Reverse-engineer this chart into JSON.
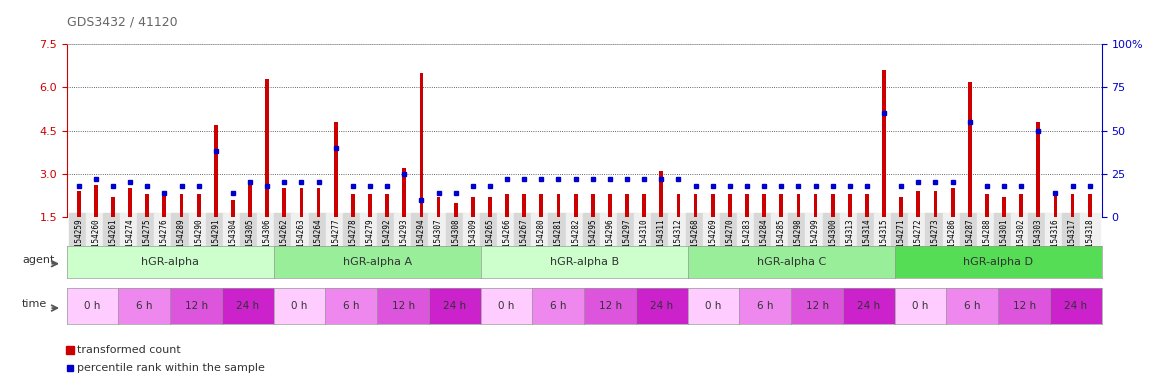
{
  "title": "GDS3432 / 41120",
  "samples": [
    "GSM154259",
    "GSM154260",
    "GSM154261",
    "GSM154274",
    "GSM154275",
    "GSM154276",
    "GSM154289",
    "GSM154290",
    "GSM154291",
    "GSM154304",
    "GSM154305",
    "GSM154306",
    "GSM154262",
    "GSM154263",
    "GSM154264",
    "GSM154277",
    "GSM154278",
    "GSM154279",
    "GSM154292",
    "GSM154293",
    "GSM154294",
    "GSM154307",
    "GSM154308",
    "GSM154309",
    "GSM154265",
    "GSM154266",
    "GSM154267",
    "GSM154280",
    "GSM154281",
    "GSM154282",
    "GSM154295",
    "GSM154296",
    "GSM154297",
    "GSM154310",
    "GSM154311",
    "GSM154312",
    "GSM154268",
    "GSM154269",
    "GSM154270",
    "GSM154283",
    "GSM154284",
    "GSM154285",
    "GSM154298",
    "GSM154299",
    "GSM154300",
    "GSM154313",
    "GSM154314",
    "GSM154315",
    "GSM154271",
    "GSM154272",
    "GSM154273",
    "GSM154286",
    "GSM154287",
    "GSM154288",
    "GSM154301",
    "GSM154302",
    "GSM154303",
    "GSM154316",
    "GSM154317",
    "GSM154318"
  ],
  "red_values": [
    2.4,
    2.6,
    2.2,
    2.5,
    2.3,
    2.3,
    2.3,
    2.3,
    4.7,
    2.1,
    2.8,
    6.3,
    2.5,
    2.5,
    2.5,
    4.8,
    2.3,
    2.3,
    2.3,
    3.2,
    6.5,
    2.2,
    2.0,
    2.2,
    2.2,
    2.3,
    2.3,
    2.3,
    2.3,
    2.3,
    2.3,
    2.3,
    2.3,
    2.3,
    3.1,
    2.3,
    2.3,
    2.3,
    2.3,
    2.3,
    2.3,
    2.3,
    2.3,
    2.3,
    2.3,
    2.3,
    2.3,
    6.6,
    2.2,
    2.4,
    2.4,
    2.5,
    6.2,
    2.3,
    2.2,
    2.3,
    4.8,
    2.3,
    2.3,
    2.3
  ],
  "blue_values": [
    18,
    22,
    18,
    20,
    18,
    14,
    18,
    18,
    38,
    14,
    20,
    18,
    20,
    20,
    20,
    40,
    18,
    18,
    18,
    25,
    10,
    14,
    14,
    18,
    18,
    22,
    22,
    22,
    22,
    22,
    22,
    22,
    22,
    22,
    22,
    22,
    18,
    18,
    18,
    18,
    18,
    18,
    18,
    18,
    18,
    18,
    18,
    60,
    18,
    20,
    20,
    20,
    55,
    18,
    18,
    18,
    50,
    14,
    18,
    18
  ],
  "agents": [
    {
      "label": "hGR-alpha",
      "start": 0,
      "end": 12,
      "color": "#ccffcc"
    },
    {
      "label": "hGR-alpha A",
      "start": 12,
      "end": 24,
      "color": "#99ee99"
    },
    {
      "label": "hGR-alpha B",
      "start": 24,
      "end": 36,
      "color": "#ccffcc"
    },
    {
      "label": "hGR-alpha C",
      "start": 36,
      "end": 48,
      "color": "#99ee99"
    },
    {
      "label": "hGR-alpha D",
      "start": 48,
      "end": 60,
      "color": "#55dd55"
    }
  ],
  "times": [
    {
      "label": "0 h",
      "color": "#ffccff"
    },
    {
      "label": "6 h",
      "color": "#ee88ee"
    },
    {
      "label": "12 h",
      "color": "#dd55dd"
    },
    {
      "label": "24 h",
      "color": "#cc22cc"
    }
  ],
  "ylim_left": [
    1.5,
    7.5
  ],
  "ylim_right": [
    0,
    100
  ],
  "yticks_left": [
    1.5,
    3.0,
    4.5,
    6.0,
    7.5
  ],
  "yticks_right": [
    0,
    25,
    50,
    75,
    100
  ],
  "left_color": "#cc0000",
  "right_color": "#0000cc",
  "bar_color": "#cc0000",
  "dot_color": "#0000cc"
}
